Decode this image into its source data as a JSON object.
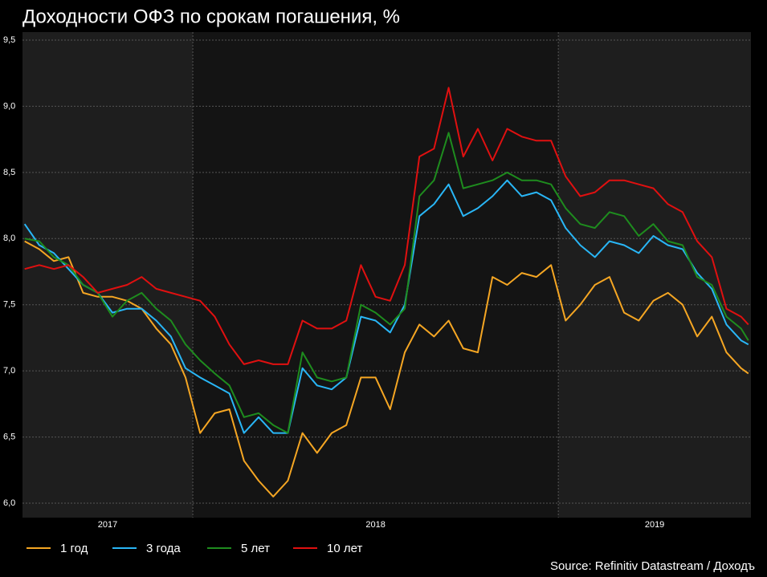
{
  "chart_data": {
    "type": "line",
    "title": "Доходности ОФЗ по срокам погашения, %",
    "source": "Source: Refinitiv Datastream / Доходъ",
    "year_labels": [
      "2017",
      "2018",
      "2019"
    ],
    "x": [
      2017.54,
      2017.58,
      2017.62,
      2017.66,
      2017.7,
      2017.74,
      2017.78,
      2017.82,
      2017.86,
      2017.9,
      2017.94,
      2017.98,
      2018.02,
      2018.06,
      2018.1,
      2018.14,
      2018.18,
      2018.22,
      2018.26,
      2018.3,
      2018.34,
      2018.38,
      2018.42,
      2018.46,
      2018.5,
      2018.54,
      2018.58,
      2018.62,
      2018.66,
      2018.7,
      2018.74,
      2018.78,
      2018.82,
      2018.86,
      2018.9,
      2018.94,
      2018.98,
      2019.02,
      2019.06,
      2019.1,
      2019.14,
      2019.18,
      2019.22,
      2019.26,
      2019.3,
      2019.34,
      2019.38,
      2019.42,
      2019.46,
      2019.5,
      2019.52
    ],
    "xlim": [
      2017.534,
      2019.527
    ],
    "xticks": [
      2018,
      2019
    ],
    "ylim": [
      6.0,
      9.5
    ],
    "yticks": [
      {
        "value": 6.0,
        "label": "6,0"
      },
      {
        "value": 6.5,
        "label": "6,5"
      },
      {
        "value": 7.0,
        "label": "7,0"
      },
      {
        "value": 7.5,
        "label": "7,5"
      },
      {
        "value": 8.0,
        "label": "8,0"
      },
      {
        "value": 8.5,
        "label": "8,5"
      },
      {
        "value": 9.0,
        "label": "9,0"
      },
      {
        "value": 9.5,
        "label": "9,5"
      }
    ],
    "grid": true,
    "legend": "bottom",
    "series": [
      {
        "name": "1 год",
        "color": "#f5a623",
        "values": [
          7.98,
          7.92,
          7.83,
          7.86,
          7.59,
          7.56,
          7.56,
          7.53,
          7.47,
          7.32,
          7.2,
          6.95,
          6.53,
          6.68,
          6.71,
          6.32,
          6.17,
          6.05,
          6.17,
          6.53,
          6.38,
          6.53,
          6.59,
          6.95,
          6.95,
          6.71,
          7.14,
          7.35,
          7.26,
          7.38,
          7.17,
          7.14,
          7.71,
          7.65,
          7.74,
          7.71,
          7.8,
          7.38,
          7.5,
          7.65,
          7.71,
          7.44,
          7.38,
          7.53,
          7.59,
          7.5,
          7.26,
          7.41,
          7.14,
          7.02,
          6.98
        ]
      },
      {
        "name": "3 года",
        "color": "#29b6f6",
        "values": [
          8.11,
          7.95,
          7.89,
          7.77,
          7.65,
          7.59,
          7.44,
          7.47,
          7.47,
          7.38,
          7.26,
          7.02,
          6.95,
          6.89,
          6.83,
          6.53,
          6.65,
          6.53,
          6.53,
          7.02,
          6.89,
          6.86,
          6.95,
          7.41,
          7.38,
          7.29,
          7.5,
          8.17,
          8.26,
          8.41,
          8.17,
          8.23,
          8.32,
          8.44,
          8.32,
          8.35,
          8.29,
          8.08,
          7.95,
          7.86,
          7.98,
          7.95,
          7.89,
          8.02,
          7.95,
          7.92,
          7.74,
          7.62,
          7.35,
          7.23,
          7.2
        ]
      },
      {
        "name": "5 лет",
        "color": "#1e8c1e",
        "values": [
          8.0,
          7.98,
          7.86,
          7.8,
          7.65,
          7.59,
          7.41,
          7.53,
          7.59,
          7.47,
          7.38,
          7.2,
          7.08,
          6.98,
          6.89,
          6.65,
          6.68,
          6.59,
          6.53,
          7.14,
          6.95,
          6.92,
          6.95,
          7.5,
          7.44,
          7.35,
          7.47,
          8.32,
          8.44,
          8.8,
          8.38,
          8.41,
          8.44,
          8.5,
          8.44,
          8.44,
          8.41,
          8.23,
          8.11,
          8.08,
          8.2,
          8.17,
          8.02,
          8.11,
          7.98,
          7.95,
          7.71,
          7.65,
          7.41,
          7.32,
          7.23
        ]
      },
      {
        "name": "10 лет",
        "color": "#e01010",
        "values": [
          7.77,
          7.8,
          7.77,
          7.8,
          7.71,
          7.59,
          7.62,
          7.65,
          7.71,
          7.62,
          7.59,
          7.56,
          7.53,
          7.41,
          7.2,
          7.05,
          7.08,
          7.05,
          7.05,
          7.38,
          7.32,
          7.32,
          7.38,
          7.8,
          7.56,
          7.53,
          7.8,
          8.62,
          8.68,
          9.14,
          8.62,
          8.83,
          8.59,
          8.83,
          8.77,
          8.74,
          8.74,
          8.47,
          8.32,
          8.35,
          8.44,
          8.44,
          8.41,
          8.38,
          8.26,
          8.2,
          7.98,
          7.86,
          7.47,
          7.41,
          7.35
        ]
      }
    ]
  }
}
